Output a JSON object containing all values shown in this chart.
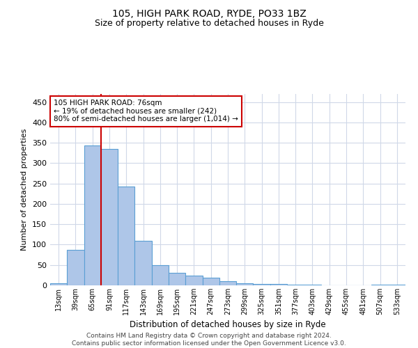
{
  "title": "105, HIGH PARK ROAD, RYDE, PO33 1BZ",
  "subtitle": "Size of property relative to detached houses in Ryde",
  "xlabel": "Distribution of detached houses by size in Ryde",
  "ylabel": "Number of detached properties",
  "footer_line1": "Contains HM Land Registry data © Crown copyright and database right 2024.",
  "footer_line2": "Contains public sector information licensed under the Open Government Licence v3.0.",
  "bar_color": "#aec6e8",
  "bar_edge_color": "#5a9fd4",
  "grid_color": "#d0d8e8",
  "annotation_box_color": "#cc0000",
  "vline_color": "#cc0000",
  "categories": [
    "13sqm",
    "39sqm",
    "65sqm",
    "91sqm",
    "117sqm",
    "143sqm",
    "169sqm",
    "195sqm",
    "221sqm",
    "247sqm",
    "273sqm",
    "299sqm",
    "325sqm",
    "351sqm",
    "377sqm",
    "403sqm",
    "429sqm",
    "455sqm",
    "481sqm",
    "507sqm",
    "533sqm"
  ],
  "values": [
    5,
    88,
    343,
    335,
    243,
    110,
    49,
    31,
    24,
    19,
    10,
    5,
    4,
    3,
    2,
    1,
    0,
    0,
    0,
    1,
    1
  ],
  "property_label": "105 HIGH PARK ROAD: 76sqm",
  "pct_smaller": 19,
  "count_smaller": 242,
  "pct_larger_semi": 80,
  "count_larger_semi": 1014,
  "vline_position": 2.5,
  "ylim": [
    0,
    470
  ],
  "yticks": [
    0,
    50,
    100,
    150,
    200,
    250,
    300,
    350,
    400,
    450
  ]
}
